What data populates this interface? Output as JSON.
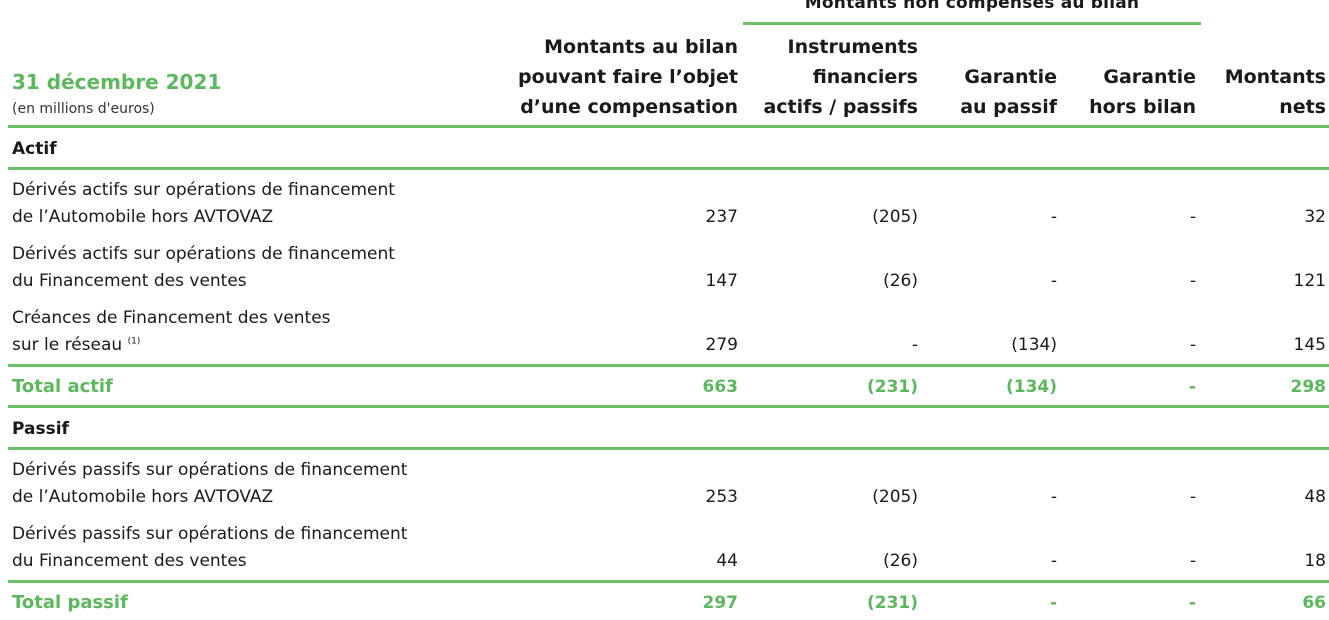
{
  "header": {
    "group_label": "Montants non compensés au bilan",
    "date_title": "31 décembre 2021",
    "unit_note": "(en millions d'euros)",
    "columns": [
      {
        "lines": [
          "Montants au bilan",
          "pouvant faire l’objet",
          "d’une compensation"
        ]
      },
      {
        "lines": [
          "Instruments",
          "financiers",
          "actifs / passifs"
        ]
      },
      {
        "lines": [
          "Garantie",
          "au passif"
        ]
      },
      {
        "lines": [
          "Garantie",
          "hors bilan"
        ]
      },
      {
        "lines": [
          "Montants",
          "nets"
        ]
      }
    ]
  },
  "sections": [
    {
      "label": "Actif",
      "rows": [
        {
          "label_lines": [
            "Dérivés actifs sur opérations de financement",
            "de l’Automobile hors AVTOVAZ"
          ],
          "note": "",
          "values": [
            "237",
            "(205)",
            "-",
            "-",
            "32"
          ]
        },
        {
          "label_lines": [
            "Dérivés actifs sur opérations de financement",
            "du Financement des ventes"
          ],
          "note": "",
          "values": [
            "147",
            "(26)",
            "-",
            "-",
            "121"
          ]
        },
        {
          "label_lines": [
            "Créances de Financement des ventes",
            "sur le réseau"
          ],
          "note": "(1)",
          "values": [
            "279",
            "-",
            "(134)",
            "-",
            "145"
          ]
        }
      ],
      "total": {
        "label": "Total actif",
        "values": [
          "663",
          "(231)",
          "(134)",
          "-",
          "298"
        ]
      }
    },
    {
      "label": "Passif",
      "rows": [
        {
          "label_lines": [
            "Dérivés passifs sur opérations de financement",
            "de l’Automobile hors AVTOVAZ"
          ],
          "note": "",
          "values": [
            "253",
            "(205)",
            "-",
            "-",
            "48"
          ]
        },
        {
          "label_lines": [
            "Dérivés passifs sur opérations de financement",
            "du Financement des ventes"
          ],
          "note": "",
          "values": [
            "44",
            "(26)",
            "-",
            "-",
            "18"
          ]
        }
      ],
      "total": {
        "label": "Total passif",
        "values": [
          "297",
          "(231)",
          "-",
          "-",
          "66"
        ]
      }
    }
  ],
  "colors": {
    "accent": "#5cb85c",
    "rule": "#6dbf6a",
    "text": "#1a1a1a"
  }
}
